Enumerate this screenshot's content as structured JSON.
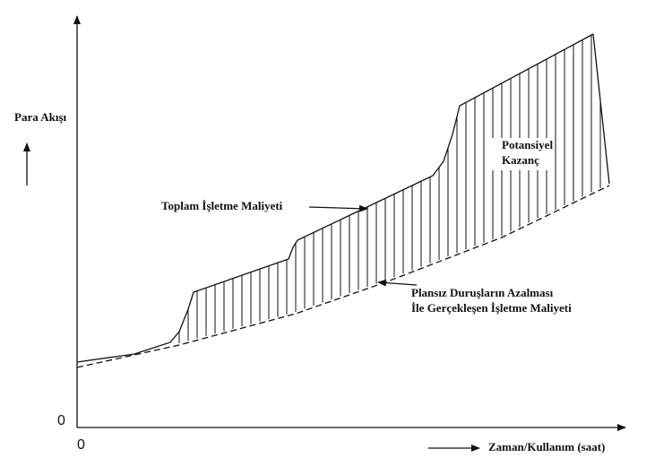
{
  "axes": {
    "y_label": "Para Akışı",
    "y_origin": "0",
    "x_origin": "0",
    "x_label": "Zaman/Kullanım (saat)"
  },
  "annotations": {
    "total_cost": "Toplam İşletme Maliyeti",
    "reduced_cost": [
      "Plansız Duruşların Azalması",
      "İle Gerçekleşen İşletme Maliyeti"
    ],
    "potential_gain": [
      "Potansiyel",
      "Kazanç"
    ]
  }
}
